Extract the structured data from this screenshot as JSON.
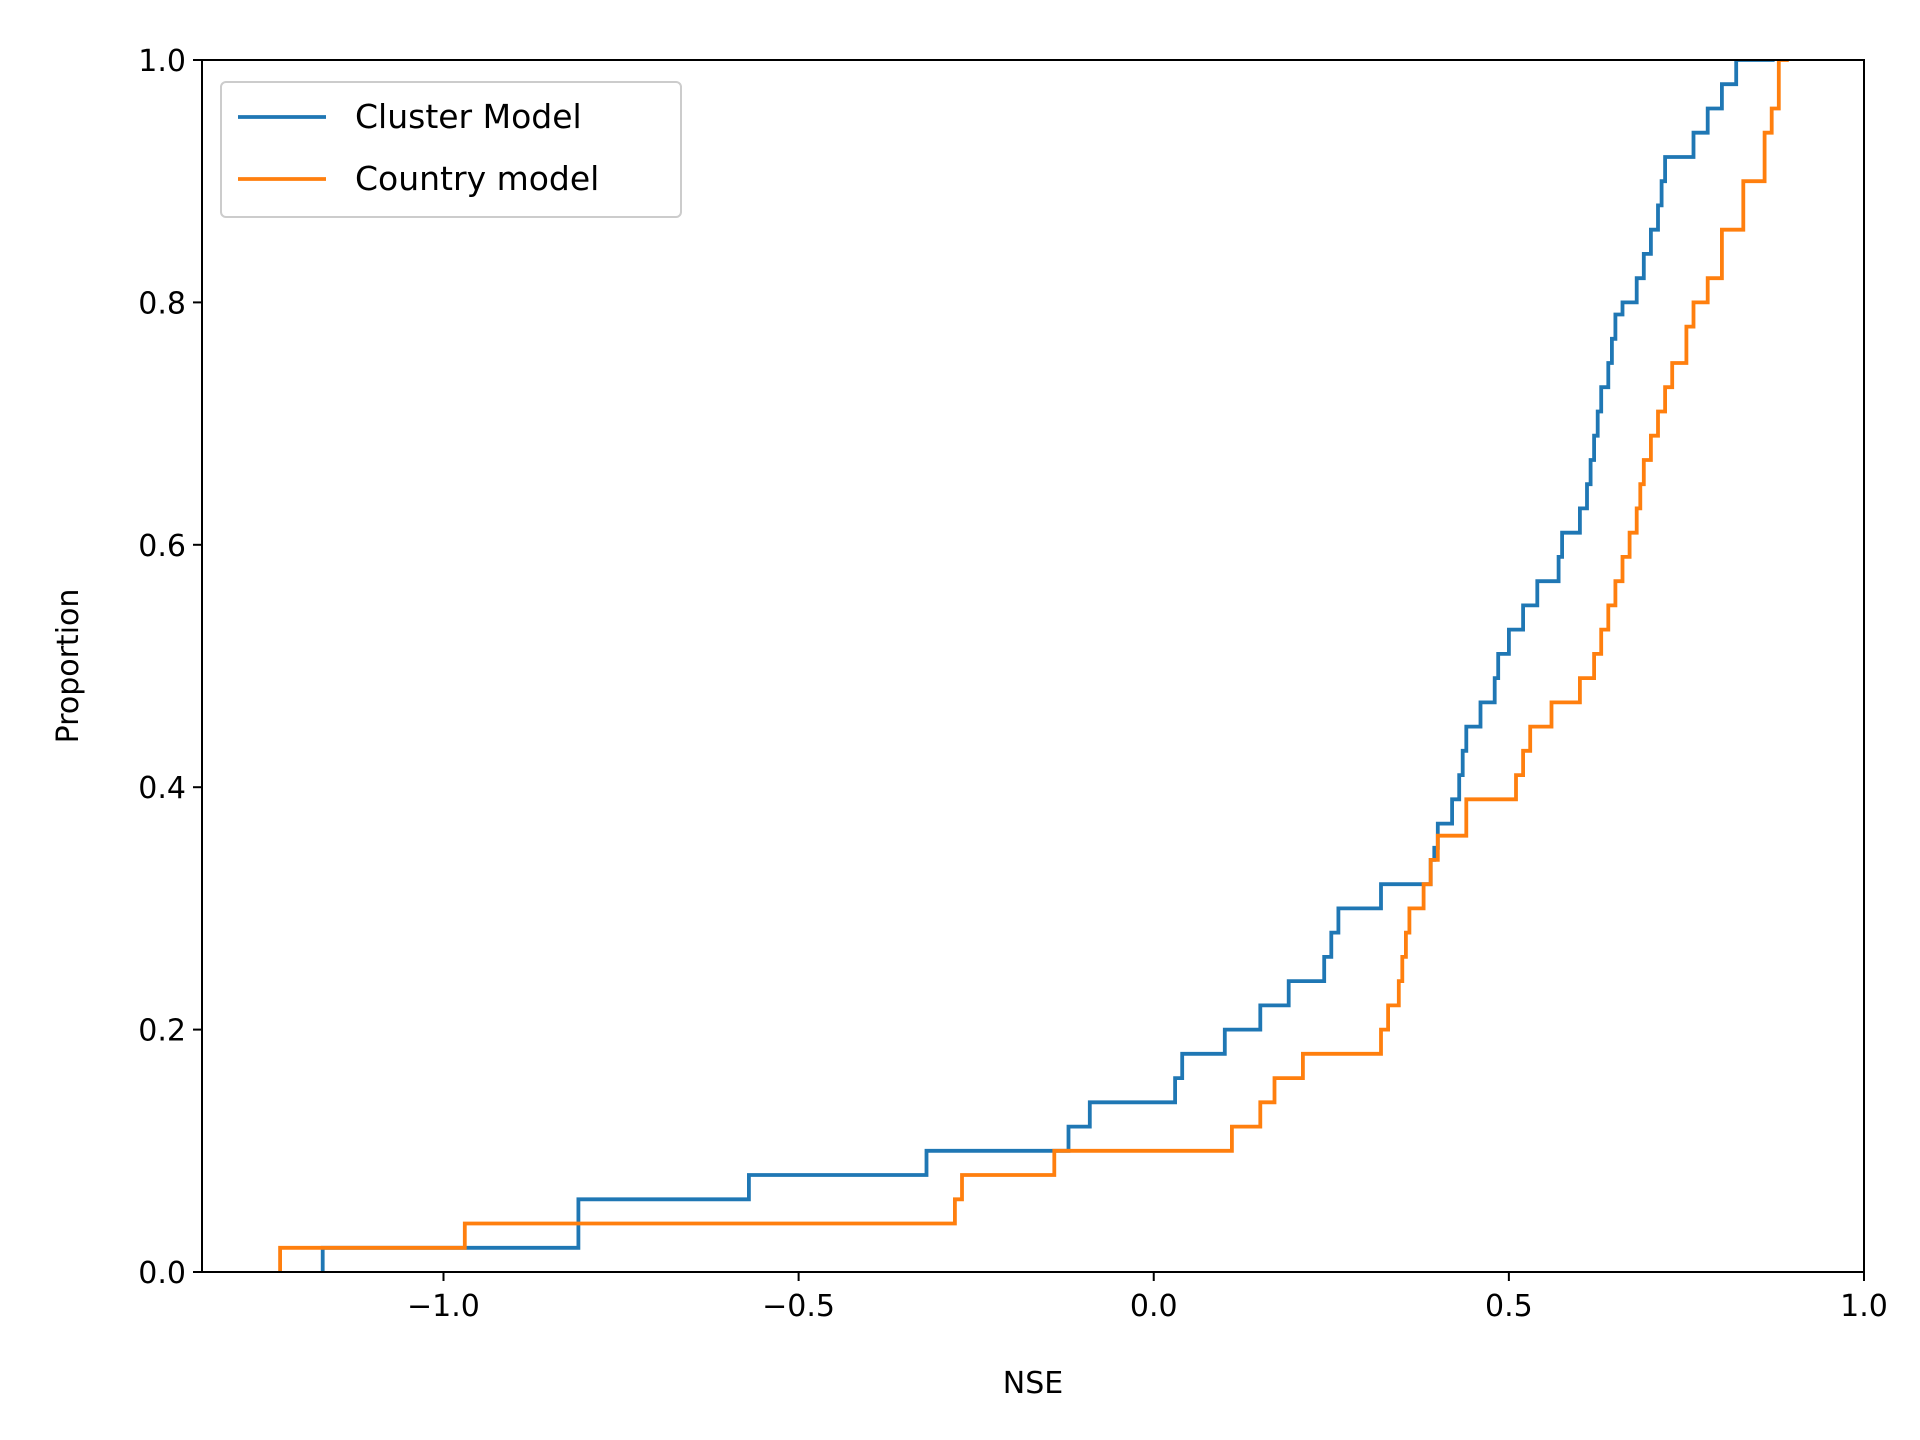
{
  "chart_data": {
    "type": "line",
    "plot_style": "ecdf-step",
    "xlabel": "NSE",
    "ylabel": "Proportion",
    "xlim": [
      -1.34,
      1.0
    ],
    "ylim": [
      0.0,
      1.0
    ],
    "xticks": [
      -1.0,
      -0.5,
      0.0,
      0.5,
      1.0
    ],
    "xtick_labels": [
      "−1.0",
      "−0.5",
      "0.0",
      "0.5",
      "1.0"
    ],
    "yticks": [
      0.0,
      0.2,
      0.4,
      0.6,
      0.8,
      1.0
    ],
    "ytick_labels": [
      "0.0",
      "0.2",
      "0.4",
      "0.6",
      "0.8",
      "1.0"
    ],
    "grid": false,
    "legend_position": "upper-left",
    "series": [
      {
        "name": "Cluster Model",
        "color": "#1f77b4",
        "x": [
          -1.17,
          -0.81,
          -0.57,
          -0.32,
          -0.12,
          -0.09,
          0.03,
          0.04,
          0.1,
          0.15,
          0.19,
          0.24,
          0.25,
          0.26,
          0.32,
          0.39,
          0.395,
          0.4,
          0.42,
          0.43,
          0.435,
          0.44,
          0.46,
          0.48,
          0.485,
          0.5,
          0.52,
          0.54,
          0.57,
          0.575,
          0.6,
          0.61,
          0.615,
          0.62,
          0.625,
          0.63,
          0.64,
          0.645,
          0.65,
          0.66,
          0.68,
          0.69,
          0.7,
          0.71,
          0.715,
          0.72,
          0.76,
          0.78,
          0.8,
          0.82,
          0.86
        ],
        "y": [
          0.02,
          0.06,
          0.08,
          0.1,
          0.12,
          0.14,
          0.16,
          0.18,
          0.2,
          0.22,
          0.24,
          0.26,
          0.28,
          0.3,
          0.32,
          0.34,
          0.35,
          0.37,
          0.39,
          0.41,
          0.43,
          0.45,
          0.47,
          0.49,
          0.51,
          0.53,
          0.55,
          0.57,
          0.59,
          0.61,
          0.63,
          0.65,
          0.67,
          0.69,
          0.71,
          0.73,
          0.75,
          0.77,
          0.79,
          0.8,
          0.82,
          0.84,
          0.86,
          0.88,
          0.9,
          0.92,
          0.94,
          0.96,
          0.98,
          1.0,
          1.0
        ]
      },
      {
        "name": "Country model",
        "color": "#ff7f0e",
        "x": [
          -1.23,
          -0.97,
          -0.28,
          -0.27,
          -0.14,
          0.11,
          0.15,
          0.17,
          0.21,
          0.32,
          0.33,
          0.345,
          0.35,
          0.355,
          0.36,
          0.38,
          0.39,
          0.4,
          0.44,
          0.51,
          0.52,
          0.53,
          0.56,
          0.6,
          0.62,
          0.63,
          0.64,
          0.65,
          0.66,
          0.67,
          0.68,
          0.685,
          0.69,
          0.7,
          0.71,
          0.72,
          0.73,
          0.75,
          0.76,
          0.78,
          0.8,
          0.83,
          0.86,
          0.87,
          0.88
        ],
        "y": [
          0.02,
          0.04,
          0.06,
          0.08,
          0.1,
          0.12,
          0.14,
          0.16,
          0.18,
          0.2,
          0.22,
          0.24,
          0.26,
          0.28,
          0.3,
          0.32,
          0.34,
          0.36,
          0.39,
          0.41,
          0.43,
          0.45,
          0.47,
          0.49,
          0.51,
          0.53,
          0.55,
          0.57,
          0.59,
          0.61,
          0.63,
          0.65,
          0.67,
          0.69,
          0.71,
          0.73,
          0.75,
          0.78,
          0.8,
          0.82,
          0.86,
          0.9,
          0.94,
          0.96,
          1.0
        ]
      }
    ]
  }
}
